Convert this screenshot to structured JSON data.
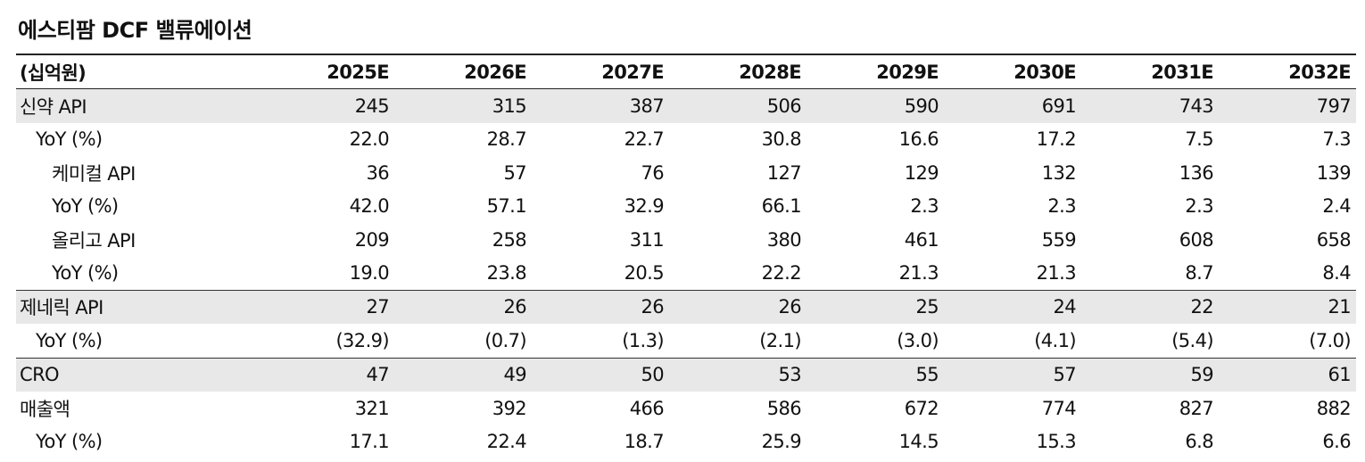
{
  "title": "에스티팜 DCF 밸류에이션",
  "header": {
    "unit": "(십억원)",
    "years": [
      "2025E",
      "2026E",
      "2027E",
      "2028E",
      "2029E",
      "2030E",
      "2031E",
      "2032E"
    ]
  },
  "rows": [
    {
      "label": "신약 API",
      "values": [
        "245",
        "315",
        "387",
        "506",
        "590",
        "691",
        "743",
        "797"
      ]
    },
    {
      "label": "YoY (%)",
      "values": [
        "22.0",
        "28.7",
        "22.7",
        "30.8",
        "16.6",
        "17.2",
        "7.5",
        "7.3"
      ]
    },
    {
      "label": "케미컬 API",
      "values": [
        "36",
        "57",
        "76",
        "127",
        "129",
        "132",
        "136",
        "139"
      ]
    },
    {
      "label": "YoY (%)",
      "values": [
        "42.0",
        "57.1",
        "32.9",
        "66.1",
        "2.3",
        "2.3",
        "2.3",
        "2.4"
      ]
    },
    {
      "label": "올리고 API",
      "values": [
        "209",
        "258",
        "311",
        "380",
        "461",
        "559",
        "608",
        "658"
      ]
    },
    {
      "label": "YoY (%)",
      "values": [
        "19.0",
        "23.8",
        "20.5",
        "22.2",
        "21.3",
        "21.3",
        "8.7",
        "8.4"
      ]
    },
    {
      "label": "제네릭 API",
      "values": [
        "27",
        "26",
        "26",
        "26",
        "25",
        "24",
        "22",
        "21"
      ]
    },
    {
      "label": "YoY (%)",
      "values": [
        "(32.9)",
        "(0.7)",
        "(1.3)",
        "(2.1)",
        "(3.0)",
        "(4.1)",
        "(5.4)",
        "(7.0)"
      ]
    },
    {
      "label": "CRO",
      "values": [
        "47",
        "49",
        "50",
        "53",
        "55",
        "57",
        "59",
        "61"
      ]
    },
    {
      "label": "매출액",
      "values": [
        "321",
        "392",
        "466",
        "586",
        "672",
        "774",
        "827",
        "882"
      ]
    },
    {
      "label": "YoY (%)",
      "values": [
        "17.1",
        "22.4",
        "18.7",
        "25.9",
        "14.5",
        "15.3",
        "6.8",
        "6.6"
      ]
    }
  ]
}
